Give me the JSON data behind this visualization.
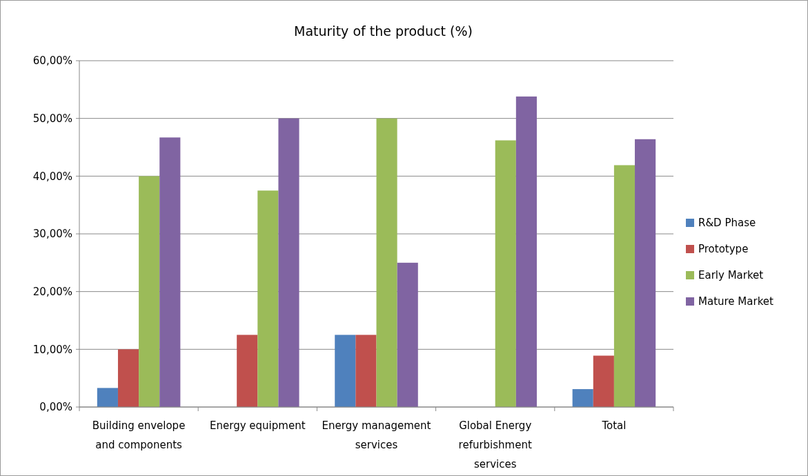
{
  "chart_data": {
    "type": "bar",
    "title": "Maturity of the product (%)",
    "categories": [
      "Building envelope and components",
      "Energy equipment",
      "Energy management services",
      "Global Energy refurbishment services",
      "Total"
    ],
    "series": [
      {
        "name": "R&D Phase",
        "color": "#4f81bd",
        "values": [
          3.3,
          0,
          12.5,
          0,
          3.1
        ]
      },
      {
        "name": "Prototype",
        "color": "#c0504d",
        "values": [
          10,
          12.5,
          12.5,
          0,
          8.9
        ]
      },
      {
        "name": "Early Market",
        "color": "#9bbb59",
        "values": [
          40,
          37.5,
          50,
          46.2,
          41.9
        ]
      },
      {
        "name": "Mature Market",
        "color": "#8064a2",
        "values": [
          46.7,
          50,
          25,
          53.8,
          46.4
        ]
      }
    ],
    "ylim": [
      0,
      60
    ],
    "yticks": [
      {
        "value": 0,
        "label": "0,00%"
      },
      {
        "value": 10,
        "label": "10,00%"
      },
      {
        "value": 20,
        "label": "20,00%"
      },
      {
        "value": 30,
        "label": "30,00%"
      },
      {
        "value": 40,
        "label": "40,00%"
      },
      {
        "value": 50,
        "label": "50,00%"
      },
      {
        "value": 60,
        "label": "60,00%"
      }
    ],
    "grid": "y",
    "legend": "right"
  }
}
